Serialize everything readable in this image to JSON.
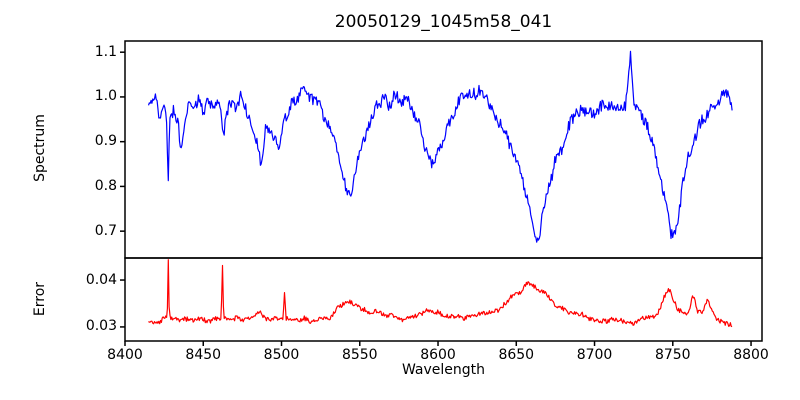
{
  "figure": {
    "title": "20050129_1045m58_041",
    "background": "#ffffff",
    "frame_color": "#000000",
    "tick_color": "#000000"
  },
  "chart_data": [
    {
      "type": "line",
      "name": "spectrum",
      "series_color": "#0000ff",
      "ylabel": "Spectrum",
      "xlim": [
        8400,
        8807
      ],
      "ylim": [
        0.64,
        1.125
      ],
      "yticks": [
        0.7,
        0.8,
        0.9,
        1.0,
        1.1
      ],
      "ytick_labels": [
        "0.7",
        "0.8",
        "0.9",
        "1.0",
        "1.1"
      ],
      "grid": false,
      "sample_step": 0.55,
      "noise": {
        "fast": 0.013,
        "slow": 0.011,
        "period": 6
      },
      "anchors": [
        [
          8415,
          0.975
        ],
        [
          8418,
          0.99
        ],
        [
          8420,
          1.0
        ],
        [
          8422,
          0.96
        ],
        [
          8424,
          0.98
        ],
        [
          8426.5,
          0.96
        ],
        [
          8427.5,
          0.8
        ],
        [
          8428.5,
          0.94
        ],
        [
          8431,
          0.97
        ],
        [
          8434,
          0.95
        ],
        [
          8436,
          0.88
        ],
        [
          8438,
          0.95
        ],
        [
          8441,
          0.985
        ],
        [
          8444,
          0.96
        ],
        [
          8447,
          0.99
        ],
        [
          8450,
          0.97
        ],
        [
          8453,
          0.995
        ],
        [
          8456,
          0.97
        ],
        [
          8459,
          0.99
        ],
        [
          8462,
          0.95
        ],
        [
          8463,
          0.9
        ],
        [
          8465,
          0.96
        ],
        [
          8468,
          0.99
        ],
        [
          8471,
          0.97
        ],
        [
          8474,
          1.0
        ],
        [
          8477,
          0.97
        ],
        [
          8480,
          0.95
        ],
        [
          8483,
          0.93
        ],
        [
          8487,
          0.85
        ],
        [
          8490,
          0.93
        ],
        [
          8494,
          0.91
        ],
        [
          8498,
          0.88
        ],
        [
          8502,
          0.95
        ],
        [
          8506,
          0.99
        ],
        [
          8510,
          1.0
        ],
        [
          8514,
          1.02
        ],
        [
          8518,
          0.99
        ],
        [
          8522,
          1.0
        ],
        [
          8526,
          0.97
        ],
        [
          8530,
          0.94
        ],
        [
          8534,
          0.9
        ],
        [
          8538,
          0.84
        ],
        [
          8542,
          0.78
        ],
        [
          8545,
          0.785
        ],
        [
          8548,
          0.85
        ],
        [
          8552,
          0.9
        ],
        [
          8556,
          0.94
        ],
        [
          8560,
          0.97
        ],
        [
          8564,
          1.0
        ],
        [
          8568,
          0.98
        ],
        [
          8572,
          1.005
        ],
        [
          8576,
          0.99
        ],
        [
          8580,
          1.005
        ],
        [
          8584,
          0.97
        ],
        [
          8588,
          0.94
        ],
        [
          8592,
          0.88
        ],
        [
          8596,
          0.85
        ],
        [
          8600,
          0.87
        ],
        [
          8604,
          0.91
        ],
        [
          8608,
          0.95
        ],
        [
          8612,
          0.98
        ],
        [
          8616,
          1.0
        ],
        [
          8620,
          1.015
        ],
        [
          8624,
          1.0
        ],
        [
          8628,
          1.005
        ],
        [
          8632,
          0.985
        ],
        [
          8636,
          0.96
        ],
        [
          8640,
          0.93
        ],
        [
          8644,
          0.91
        ],
        [
          8648,
          0.88
        ],
        [
          8652,
          0.84
        ],
        [
          8656,
          0.79
        ],
        [
          8660,
          0.72
        ],
        [
          8662,
          0.685
        ],
        [
          8665,
          0.705
        ],
        [
          8668,
          0.76
        ],
        [
          8672,
          0.82
        ],
        [
          8676,
          0.87
        ],
        [
          8680,
          0.9
        ],
        [
          8684,
          0.935
        ],
        [
          8688,
          0.955
        ],
        [
          8692,
          0.97
        ],
        [
          8696,
          0.975
        ],
        [
          8700,
          0.97
        ],
        [
          8704,
          0.975
        ],
        [
          8708,
          0.97
        ],
        [
          8712,
          0.985
        ],
        [
          8716,
          0.975
        ],
        [
          8720,
          0.98
        ],
        [
          8723,
          1.09
        ],
        [
          8725,
          0.975
        ],
        [
          8728,
          0.96
        ],
        [
          8731,
          0.95
        ],
        [
          8734,
          0.925
        ],
        [
          8738,
          0.885
        ],
        [
          8742,
          0.835
        ],
        [
          8746,
          0.755
        ],
        [
          8749,
          0.685
        ],
        [
          8752,
          0.7
        ],
        [
          8755,
          0.77
        ],
        [
          8758,
          0.84
        ],
        [
          8762,
          0.895
        ],
        [
          8766,
          0.935
        ],
        [
          8770,
          0.96
        ],
        [
          8774,
          0.975
        ],
        [
          8778,
          0.985
        ],
        [
          8782,
          1.0
        ],
        [
          8785,
          0.995
        ],
        [
          8788,
          0.98
        ]
      ]
    },
    {
      "type": "line",
      "name": "error",
      "series_color": "#ff0000",
      "ylabel": "Error",
      "xlabel": "Wavelength",
      "xlim": [
        8400,
        8807
      ],
      "ylim": [
        0.027,
        0.0447
      ],
      "yticks": [
        0.03,
        0.04
      ],
      "ytick_labels": [
        "0.03",
        "0.04"
      ],
      "xticks": [
        8400,
        8450,
        8500,
        8550,
        8600,
        8650,
        8700,
        8750,
        8800
      ],
      "xtick_labels": [
        "8400",
        "8450",
        "8500",
        "8550",
        "8600",
        "8650",
        "8700",
        "8750",
        "8800"
      ],
      "grid": false,
      "sample_step": 0.55,
      "noise": {
        "fast": 0.0005,
        "slow": 0.0004,
        "period": 6
      },
      "anchors": [
        [
          8415,
          0.0312
        ],
        [
          8420,
          0.031
        ],
        [
          8424,
          0.0316
        ],
        [
          8427,
          0.032
        ],
        [
          8427.6,
          0.0447
        ],
        [
          8428.3,
          0.032
        ],
        [
          8432,
          0.032
        ],
        [
          8436,
          0.0312
        ],
        [
          8440,
          0.0316
        ],
        [
          8444,
          0.0312
        ],
        [
          8448,
          0.0315
        ],
        [
          8452,
          0.0311
        ],
        [
          8456,
          0.0314
        ],
        [
          8461.5,
          0.0316
        ],
        [
          8462.2,
          0.044
        ],
        [
          8463,
          0.0318
        ],
        [
          8467,
          0.0313
        ],
        [
          8471,
          0.0317
        ],
        [
          8475,
          0.0313
        ],
        [
          8479,
          0.0316
        ],
        [
          8483,
          0.0322
        ],
        [
          8486,
          0.0335
        ],
        [
          8489,
          0.032
        ],
        [
          8493,
          0.0314
        ],
        [
          8497,
          0.0317
        ],
        [
          8501,
          0.032
        ],
        [
          8502,
          0.0378
        ],
        [
          8503,
          0.0322
        ],
        [
          8507,
          0.0316
        ],
        [
          8511,
          0.0313
        ],
        [
          8515,
          0.0316
        ],
        [
          8519,
          0.0312
        ],
        [
          8523,
          0.0315
        ],
        [
          8527,
          0.0318
        ],
        [
          8531,
          0.0324
        ],
        [
          8535,
          0.034
        ],
        [
          8539,
          0.0348
        ],
        [
          8543,
          0.0352
        ],
        [
          8547,
          0.0348
        ],
        [
          8551,
          0.034
        ],
        [
          8555,
          0.0334
        ],
        [
          8559,
          0.033
        ],
        [
          8563,
          0.0332
        ],
        [
          8567,
          0.0326
        ],
        [
          8571,
          0.0322
        ],
        [
          8575,
          0.032
        ],
        [
          8579,
          0.0318
        ],
        [
          8583,
          0.0322
        ],
        [
          8587,
          0.0326
        ],
        [
          8591,
          0.0332
        ],
        [
          8595,
          0.0336
        ],
        [
          8599,
          0.033
        ],
        [
          8603,
          0.0328
        ],
        [
          8607,
          0.0324
        ],
        [
          8611,
          0.0321
        ],
        [
          8615,
          0.032
        ],
        [
          8619,
          0.0322
        ],
        [
          8623,
          0.0325
        ],
        [
          8627,
          0.0327
        ],
        [
          8631,
          0.033
        ],
        [
          8635,
          0.0334
        ],
        [
          8639,
          0.034
        ],
        [
          8643,
          0.035
        ],
        [
          8647,
          0.0362
        ],
        [
          8651,
          0.0372
        ],
        [
          8655,
          0.0385
        ],
        [
          8658,
          0.0393
        ],
        [
          8661,
          0.039
        ],
        [
          8665,
          0.0382
        ],
        [
          8669,
          0.0368
        ],
        [
          8673,
          0.0354
        ],
        [
          8677,
          0.0344
        ],
        [
          8681,
          0.0337
        ],
        [
          8685,
          0.0332
        ],
        [
          8689,
          0.0328
        ],
        [
          8693,
          0.0324
        ],
        [
          8697,
          0.032
        ],
        [
          8701,
          0.0318
        ],
        [
          8705,
          0.0316
        ],
        [
          8709,
          0.0314
        ],
        [
          8713,
          0.0316
        ],
        [
          8717,
          0.0314
        ],
        [
          8721,
          0.0312
        ],
        [
          8725,
          0.0311
        ],
        [
          8729,
          0.0314
        ],
        [
          8733,
          0.0318
        ],
        [
          8737,
          0.0324
        ],
        [
          8741,
          0.0334
        ],
        [
          8745,
          0.0368
        ],
        [
          8748,
          0.0382
        ],
        [
          8750,
          0.036
        ],
        [
          8753,
          0.034
        ],
        [
          8757,
          0.0334
        ],
        [
          8760,
          0.033
        ],
        [
          8763,
          0.0372
        ],
        [
          8766,
          0.0334
        ],
        [
          8769,
          0.033
        ],
        [
          8772,
          0.0358
        ],
        [
          8775,
          0.0332
        ],
        [
          8778,
          0.0318
        ],
        [
          8781,
          0.0314
        ],
        [
          8784,
          0.031
        ],
        [
          8788,
          0.0306
        ]
      ]
    }
  ]
}
